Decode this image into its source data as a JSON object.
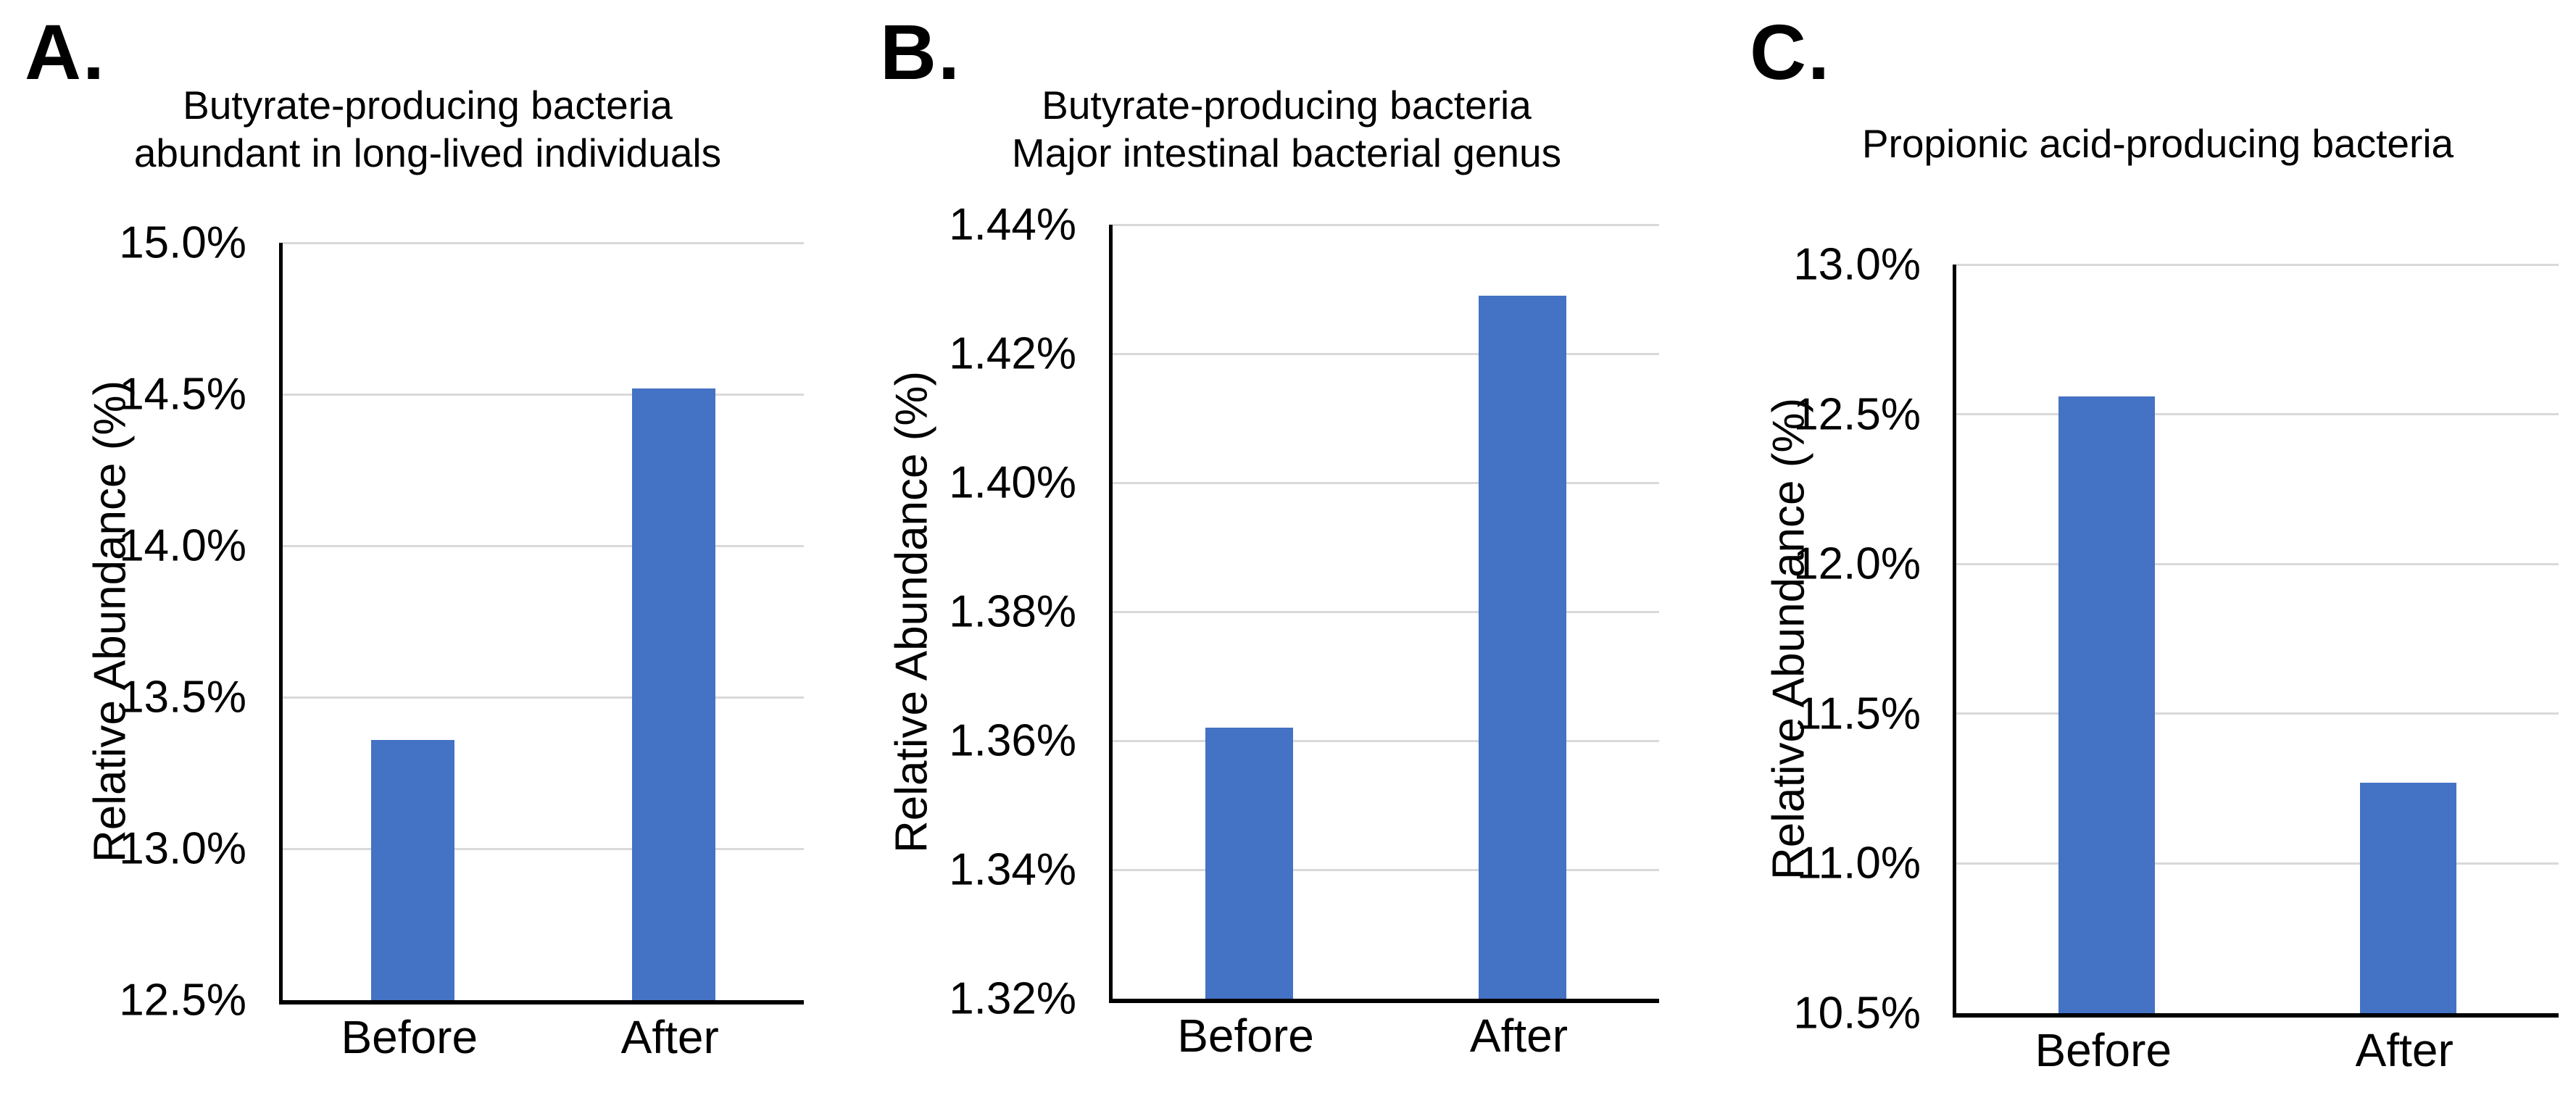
{
  "figure": {
    "kind": "three-panel bar figure",
    "background": "#FFFFFF"
  },
  "styles": {
    "bar_color": "#4472C4",
    "gridline_color": "#D9D9D9",
    "axis_color": "#000000",
    "text_color": "#000000"
  },
  "chart_data": [
    {
      "type": "bar",
      "panel_label": "A.",
      "title": "Butyrate-producing bacteria abundant in long-lived individuals",
      "title_lines": [
        "Butyrate-producing bacteria",
        "abundant in long-lived individuals"
      ],
      "ylabel": "Relative Abundance (%)",
      "xlabel": "",
      "categories": [
        "Before",
        "After"
      ],
      "values": [
        13.36,
        14.52
      ],
      "value_unit": "%",
      "ylim": [
        12.5,
        15.0
      ],
      "ytick_step": 0.5,
      "ytick_labels": [
        "12.5%",
        "13.0%",
        "13.5%",
        "14.0%",
        "14.5%",
        "15.0%"
      ],
      "grid": true,
      "legend": "none"
    },
    {
      "type": "bar",
      "panel_label": "B.",
      "title": "Butyrate-producing bacteria Major intestinal bacterial genus",
      "title_lines": [
        "Butyrate-producing bacteria",
        "Major intestinal bacterial genus"
      ],
      "ylabel": "Relative Abundance (%)",
      "xlabel": "",
      "categories": [
        "Before",
        "After"
      ],
      "values": [
        1.362,
        1.429
      ],
      "value_unit": "%",
      "ylim": [
        1.32,
        1.44
      ],
      "ytick_step": 0.02,
      "ytick_labels": [
        "1.32%",
        "1.34%",
        "1.36%",
        "1.38%",
        "1.40%",
        "1.42%",
        "1.44%"
      ],
      "grid": true,
      "legend": "none"
    },
    {
      "type": "bar",
      "panel_label": "C.",
      "title": "Propionic acid-producing bacteria",
      "title_lines": [
        "Propionic acid-producing bacteria"
      ],
      "ylabel": "Relative Abundance (%)",
      "xlabel": "",
      "categories": [
        "Before",
        "After"
      ],
      "values": [
        12.56,
        11.27
      ],
      "value_unit": "%",
      "ylim": [
        10.5,
        13.0
      ],
      "ytick_step": 0.5,
      "ytick_labels": [
        "10.5%",
        "11.0%",
        "11.5%",
        "12.0%",
        "12.5%",
        "13.0%"
      ],
      "grid": true,
      "legend": "none"
    }
  ]
}
